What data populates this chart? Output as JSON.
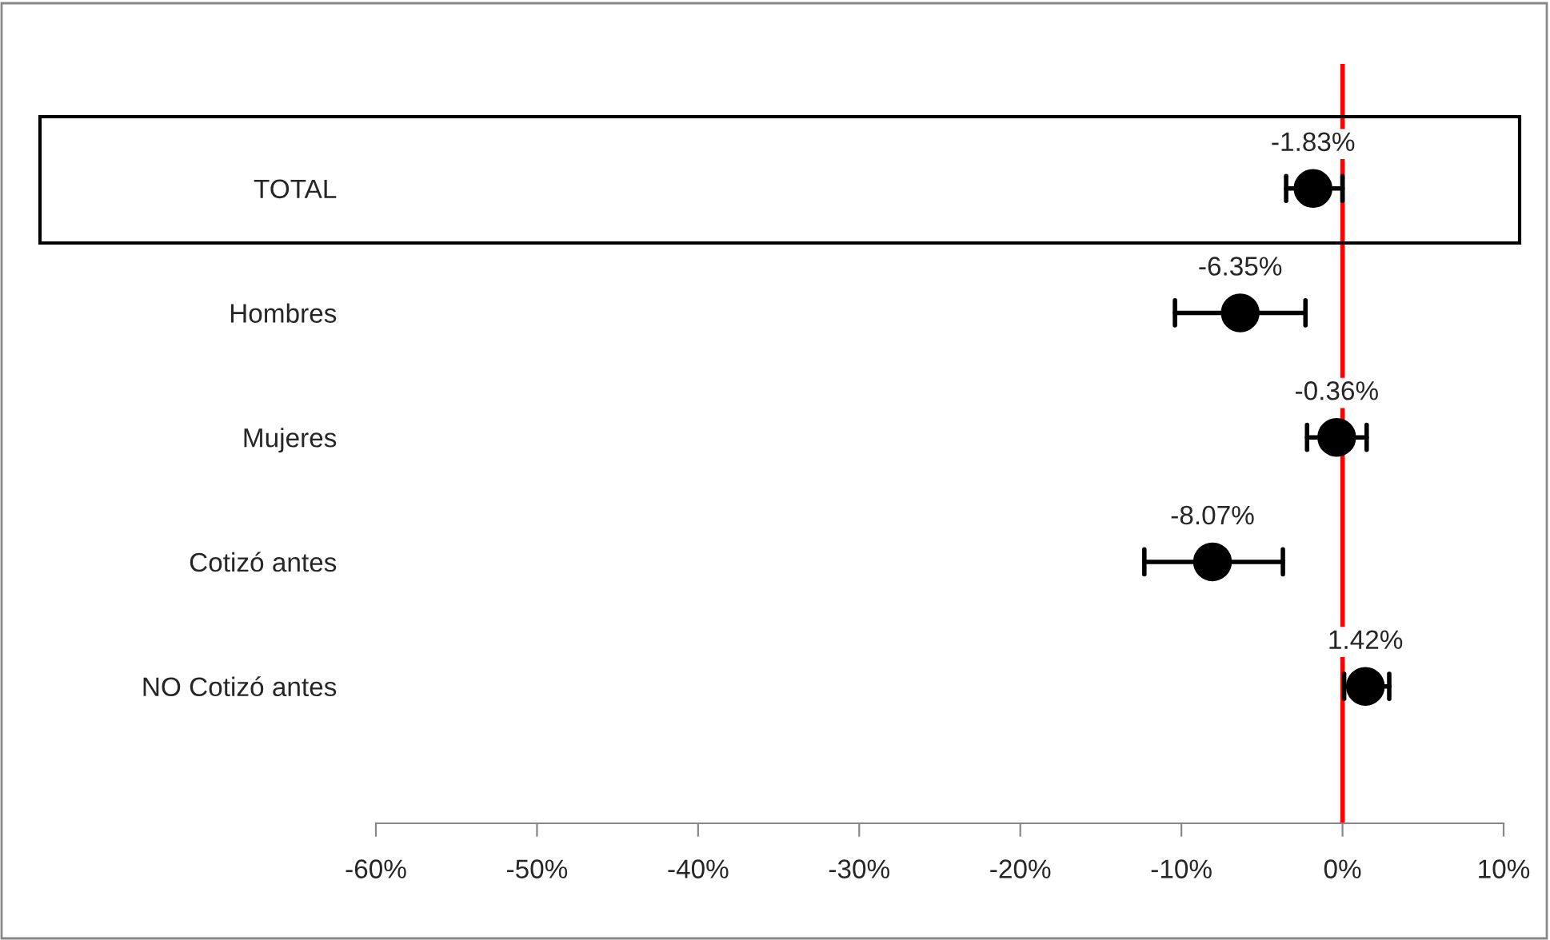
{
  "chart_data": {
    "type": "scatter",
    "orientation": "horizontal",
    "categories": [
      "TOTAL",
      "Hombres",
      "Mujeres",
      "Cotizó antes",
      "NO Cotizó antes"
    ],
    "values": [
      -1.83,
      -6.35,
      -0.36,
      -8.07,
      1.42
    ],
    "value_labels": [
      "-1.83%",
      "-6.35%",
      "-0.36%",
      "-8.07%",
      "1.42%"
    ],
    "errors": [
      [
        -3.5,
        0.0
      ],
      [
        -10.4,
        -2.3
      ],
      [
        -2.2,
        1.5
      ],
      [
        -12.3,
        -3.7
      ],
      [
        0.1,
        2.9
      ]
    ],
    "color": "#000000",
    "marker": "circle",
    "xlim": [
      -60,
      10
    ],
    "xticks": [
      {
        "value": -60,
        "label": "-60%"
      },
      {
        "value": -50,
        "label": "-50%"
      },
      {
        "value": -40,
        "label": "-40%"
      },
      {
        "value": -30,
        "label": "-30%"
      },
      {
        "value": -20,
        "label": "-20%"
      },
      {
        "value": -10,
        "label": "-10%"
      },
      {
        "value": 0,
        "label": "0%"
      },
      {
        "value": 10,
        "label": "10%"
      }
    ],
    "ref_lines": [
      {
        "axis": "x",
        "value": 0,
        "color": "#ff0000"
      }
    ],
    "grid": false,
    "legend": false
  }
}
